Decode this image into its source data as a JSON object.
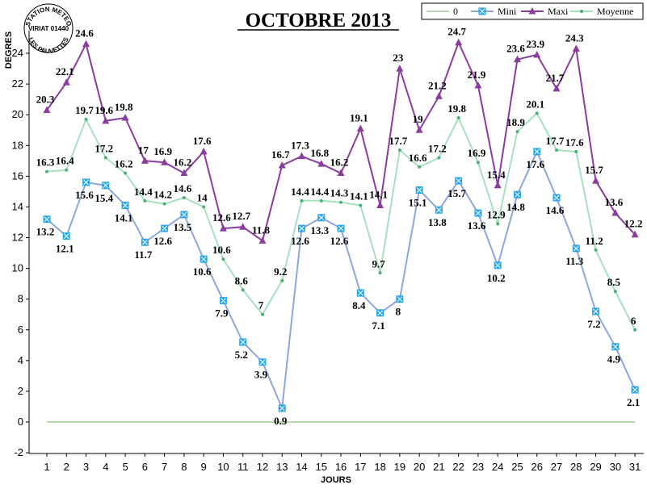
{
  "chart_data": {
    "type": "line",
    "title": "OCTOBRE 2013",
    "xlabel": "JOURS",
    "ylabel": "DEGRES",
    "ylim": [
      -2,
      25
    ],
    "yticks": [
      -2,
      0,
      2,
      4,
      6,
      8,
      10,
      12,
      14,
      16,
      18,
      20,
      22,
      24
    ],
    "categories": [
      "1",
      "2",
      "3",
      "4",
      "5",
      "6",
      "7",
      "8",
      "9",
      "10",
      "11",
      "12",
      "13",
      "14",
      "15",
      "16",
      "17",
      "18",
      "19",
      "20",
      "21",
      "22",
      "23",
      "24",
      "25",
      "26",
      "27",
      "28",
      "29",
      "30",
      "31"
    ],
    "legend_position": "top-right",
    "grid": false,
    "series": [
      {
        "name": "0",
        "color": "#b7d7b0",
        "marker": "none",
        "values": [
          0,
          0,
          0,
          0,
          0,
          0,
          0,
          0,
          0,
          0,
          0,
          0,
          0,
          0,
          0,
          0,
          0,
          0,
          0,
          0,
          0,
          0,
          0,
          0,
          0,
          0,
          0,
          0,
          0,
          0,
          0
        ]
      },
      {
        "name": "Mini",
        "color": "#8ea6dd",
        "marker": "square",
        "marker_color": "#27a7e8",
        "values": [
          13.2,
          12.1,
          15.6,
          15.4,
          14.1,
          11.7,
          12.6,
          13.5,
          10.6,
          7.9,
          5.2,
          3.9,
          0.9,
          12.6,
          13.3,
          12.6,
          8.4,
          7.1,
          8,
          15.1,
          13.8,
          15.7,
          13.6,
          10.2,
          14.8,
          17.6,
          14.6,
          11.3,
          7.2,
          4.9,
          2.1
        ]
      },
      {
        "name": "Maxi",
        "color": "#8a3d9e",
        "marker": "triangle",
        "marker_color": "#8a3d9e",
        "values": [
          20.3,
          22.1,
          24.6,
          19.6,
          19.8,
          17,
          16.9,
          16.2,
          17.6,
          12.6,
          12.7,
          11.8,
          16.7,
          17.3,
          16.8,
          16.2,
          19.1,
          14.1,
          23,
          19,
          21.2,
          24.7,
          21.9,
          15.4,
          23.6,
          23.9,
          21.7,
          24.3,
          15.7,
          13.6,
          12.2
        ]
      },
      {
        "name": "Moyenne",
        "color": "#a6e0bf",
        "marker": "dot",
        "marker_color": "#4caf7a",
        "values": [
          16.3,
          16.4,
          19.7,
          17.2,
          16.2,
          14.4,
          14.2,
          14.6,
          14,
          10.6,
          8.6,
          7,
          9.2,
          14.4,
          14.4,
          14.3,
          14.1,
          9.7,
          17.7,
          16.6,
          17.2,
          19.8,
          16.9,
          12.9,
          18.9,
          20.1,
          17.7,
          17.6,
          11.2,
          8.5,
          6
        ]
      }
    ]
  },
  "logo": {
    "line1": "STATION METEO",
    "line2": "VIRIAT 01440",
    "line3": "LES PAUVETTES"
  }
}
